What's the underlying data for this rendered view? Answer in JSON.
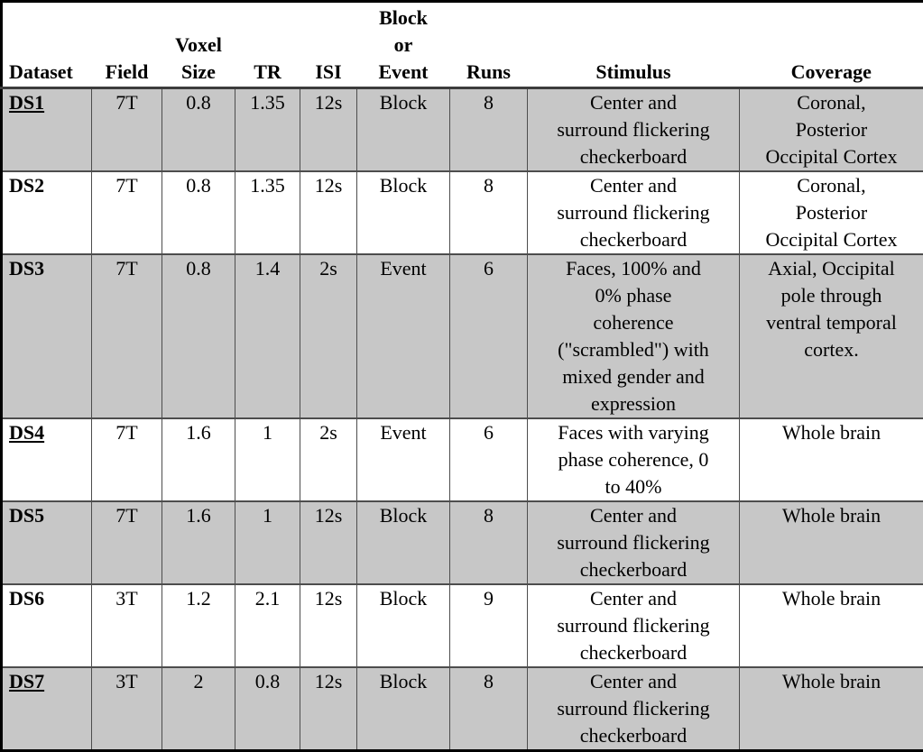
{
  "table": {
    "style": {
      "shaded_row_color": "#c7c7c7",
      "plain_row_color": "#ffffff",
      "grid_color": "#4d4d4d",
      "outer_border_color": "#000000",
      "text_color": "#000000"
    },
    "columns": [
      {
        "key": "dataset",
        "label": "Dataset"
      },
      {
        "key": "field",
        "label": "Field"
      },
      {
        "key": "voxel_size",
        "label": "Voxel Size"
      },
      {
        "key": "tr",
        "label": "TR"
      },
      {
        "key": "isi",
        "label": "ISI"
      },
      {
        "key": "block_or_event",
        "label": "Block or Event"
      },
      {
        "key": "runs",
        "label": "Runs"
      },
      {
        "key": "stimulus",
        "label": "Stimulus"
      },
      {
        "key": "coverage",
        "label": "Coverage"
      }
    ],
    "rows": [
      {
        "underlined": true,
        "shaded": true,
        "cells": {
          "dataset": "DS1",
          "field": "7T",
          "voxel_size": "0.8",
          "tr": "1.35",
          "isi": "12s",
          "block_or_event": "Block",
          "runs": "8",
          "stimulus": "Center and surround flickering checkerboard",
          "coverage": "Coronal, Posterior Occipital Cortex"
        }
      },
      {
        "underlined": false,
        "shaded": false,
        "cells": {
          "dataset": "DS2",
          "field": "7T",
          "voxel_size": "0.8",
          "tr": "1.35",
          "isi": "12s",
          "block_or_event": "Block",
          "runs": "8",
          "stimulus": "Center and surround flickering checkerboard",
          "coverage": "Coronal, Posterior Occipital Cortex"
        }
      },
      {
        "underlined": false,
        "shaded": true,
        "cells": {
          "dataset": "DS3",
          "field": "7T",
          "voxel_size": "0.8",
          "tr": "1.4",
          "isi": "2s",
          "block_or_event": "Event",
          "runs": "6",
          "stimulus": "Faces, 100% and 0% phase coherence (\"scrambled\") with mixed gender and expression",
          "coverage": "Axial, Occipital pole through ventral temporal cortex."
        }
      },
      {
        "underlined": true,
        "shaded": false,
        "cells": {
          "dataset": "DS4",
          "field": "7T",
          "voxel_size": "1.6",
          "tr": "1",
          "isi": "2s",
          "block_or_event": "Event",
          "runs": "6",
          "stimulus": "Faces with varying phase coherence, 0 to 40%",
          "coverage": "Whole brain"
        }
      },
      {
        "underlined": false,
        "shaded": true,
        "cells": {
          "dataset": "DS5",
          "field": "7T",
          "voxel_size": "1.6",
          "tr": "1",
          "isi": "12s",
          "block_or_event": "Block",
          "runs": "8",
          "stimulus": "Center and surround flickering checkerboard",
          "coverage": "Whole brain"
        }
      },
      {
        "underlined": false,
        "shaded": false,
        "cells": {
          "dataset": "DS6",
          "field": "3T",
          "voxel_size": "1.2",
          "tr": "2.1",
          "isi": "12s",
          "block_or_event": "Block",
          "runs": "9",
          "stimulus": "Center and surround flickering checkerboard",
          "coverage": "Whole brain"
        }
      },
      {
        "underlined": true,
        "shaded": true,
        "cells": {
          "dataset": "DS7",
          "field": "3T",
          "voxel_size": "2",
          "tr": "0.8",
          "isi": "12s",
          "block_or_event": "Block",
          "runs": "8",
          "stimulus": "Center and surround flickering checkerboard",
          "coverage": "Whole brain"
        }
      }
    ]
  }
}
